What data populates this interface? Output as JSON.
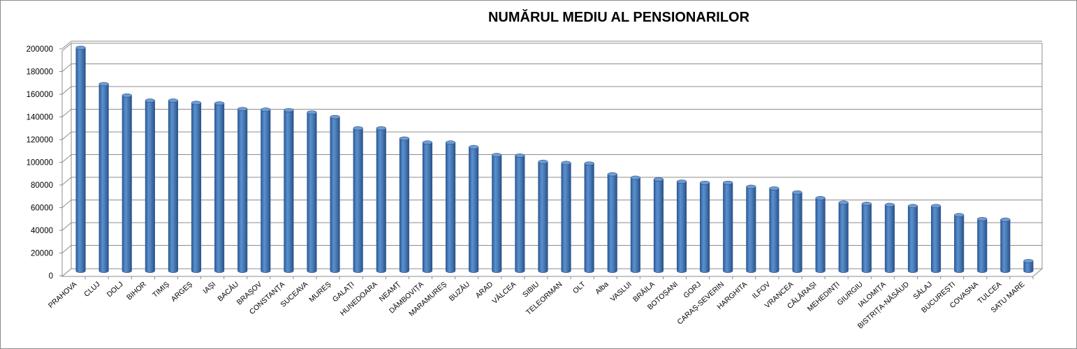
{
  "chart_data": {
    "type": "bar",
    "title": "NUMĂRUL MEDIU AL PENSIONARILOR",
    "xlabel": "",
    "ylabel": "",
    "ylim": [
      0,
      200000
    ],
    "yticks": [
      "0",
      "20000",
      "40000",
      "60000",
      "80000",
      "100000",
      "120000",
      "140000",
      "160000",
      "180000",
      "200000"
    ],
    "grid": true,
    "bar_color": "#4f81bd",
    "categories": [
      "PRAHOVA",
      "CLUJ",
      "DOLJ",
      "BIHOR",
      "TIMIȘ",
      "ARGEȘ",
      "IAȘI",
      "BACĂU",
      "BRAȘOV",
      "CONSTANȚA",
      "SUCEAVA",
      "MUREȘ",
      "GALAȚI",
      "HUNEDOARA",
      "NEAMȚ",
      "DÂMBOVIȚA",
      "MARAMUREȘ",
      "BUZĂU",
      "ARAD",
      "VÂLCEA",
      "SIBIU",
      "TELEORMAN",
      "OLT",
      "Alba",
      "VASLUI",
      "BRĂILA",
      "BOTOȘANI",
      "GORJ",
      "CARAȘ-SEVERIN",
      "HARGHITA",
      "ILFOV",
      "VRANCEA",
      "CĂLĂRAȘI",
      "MEHEDINȚI",
      "GIURGIU",
      "IALOMIȚA",
      "BISTRIȚA-NĂSĂUD",
      "SĂLAJ",
      "BUCUREȘTI",
      "COVASNA",
      "TULCEA",
      "SATU MARE"
    ],
    "values": [
      196000,
      164000,
      154000,
      149500,
      149500,
      147500,
      147000,
      142000,
      141500,
      141000,
      139000,
      135000,
      125000,
      125000,
      116000,
      112500,
      112500,
      108500,
      101500,
      101000,
      95500,
      94500,
      94000,
      84500,
      81500,
      80000,
      78000,
      77000,
      77000,
      73500,
      72000,
      68500,
      63500,
      59500,
      58500,
      57500,
      56500,
      56500,
      48500,
      45000,
      44500,
      8000
    ]
  }
}
